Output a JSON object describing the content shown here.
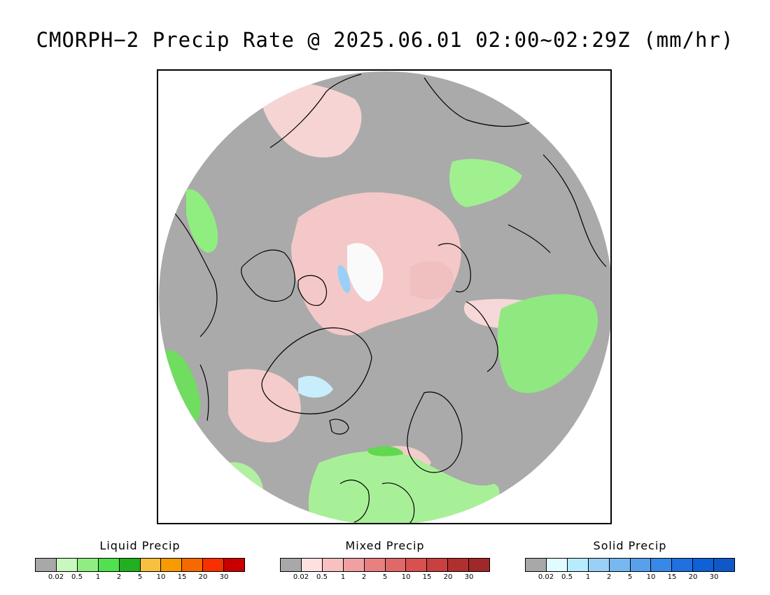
{
  "title": "CMORPH−2 Precip Rate @ 2025.06.01 02:00~02:29Z (mm/hr)",
  "map": {
    "projection": "north-polar-stereographic",
    "background_color": "#aaaaaa"
  },
  "legends": [
    {
      "id": "liquid",
      "label": "Liquid Precip",
      "colors": [
        "#a8a8a8",
        "#c8f8c0",
        "#90ee80",
        "#50e050",
        "#20b020",
        "#f8c040",
        "#f89a00",
        "#f86800",
        "#f83000",
        "#c80000"
      ],
      "ticks": [
        "0.02",
        "0.5",
        "1",
        "2",
        "5",
        "10",
        "15",
        "20",
        "30"
      ]
    },
    {
      "id": "mixed",
      "label": "Mixed Precip",
      "colors": [
        "#a8a8a8",
        "#ffe0e0",
        "#f8c0c0",
        "#f0a0a0",
        "#e88080",
        "#e06868",
        "#d85050",
        "#c84040",
        "#b03030",
        "#a02828"
      ],
      "ticks": [
        "0.02",
        "0.5",
        "1",
        "2",
        "5",
        "10",
        "15",
        "20",
        "30"
      ]
    },
    {
      "id": "solid",
      "label": "Solid Precip",
      "colors": [
        "#a8a8a8",
        "#e0fcff",
        "#b8ecfc",
        "#98d0f8",
        "#78b8f0",
        "#58a0ec",
        "#3888e8",
        "#2070e0",
        "#1060d8",
        "#1058c8"
      ],
      "ticks": [
        "0.02",
        "0.5",
        "1",
        "2",
        "5",
        "10",
        "15",
        "20",
        "30"
      ]
    }
  ]
}
